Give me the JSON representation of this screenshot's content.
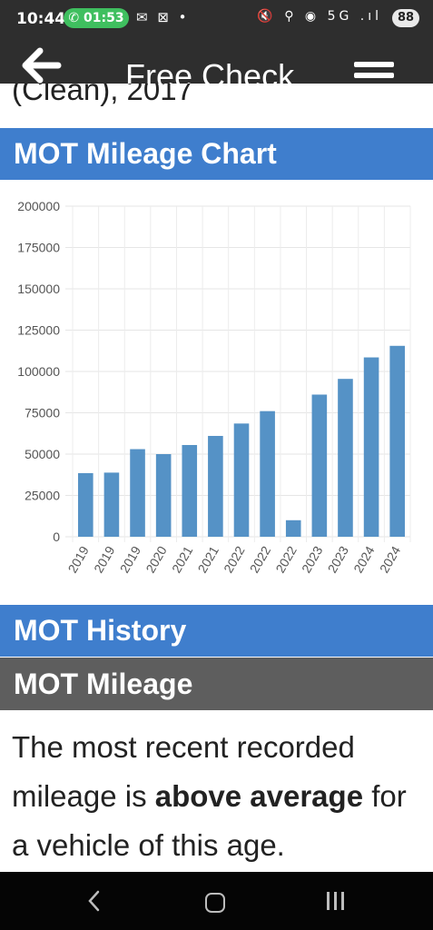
{
  "status_bar": {
    "time": "10:44",
    "call_duration": "01:53",
    "left_icons": "✉ ⊠ •",
    "right_icons": "🔇 ⚲ ◉ 5G .ıl",
    "battery": "88"
  },
  "header": {
    "title": "Free Check",
    "back_icon": "back-arrow-icon",
    "menu_icon": "hamburger-menu-icon"
  },
  "partial_text": "(Clean), 2017",
  "sections": {
    "chart_heading": "MOT Mileage Chart",
    "history_heading": "MOT History",
    "mileage_heading": "MOT Mileage"
  },
  "mileage_text": {
    "before": "The most recent recorded mileage is ",
    "bold": "above average",
    "after": " for a vehicle of this age."
  },
  "colors": {
    "accent_blue": "#3f7ecd",
    "bar_blue": "#5592c6",
    "dark_header": "#2e2e2e",
    "grey_heading": "#5e5e5e"
  },
  "chart_data": {
    "type": "bar",
    "categories": [
      "2019",
      "2019",
      "2019",
      "2020",
      "2021",
      "2021",
      "2022",
      "2022",
      "2022",
      "2023",
      "2023",
      "2024",
      "2024"
    ],
    "values": [
      38500,
      38800,
      53000,
      50000,
      55500,
      61000,
      68500,
      76000,
      10000,
      86000,
      95500,
      108500,
      115500
    ],
    "y_ticks": [
      "200000",
      "175000",
      "150000",
      "125000",
      "100000",
      "75000",
      "50000",
      "25000",
      "0"
    ],
    "ylim": [
      0,
      200000
    ],
    "grid": true,
    "title": "",
    "xlabel": "",
    "ylabel": ""
  }
}
